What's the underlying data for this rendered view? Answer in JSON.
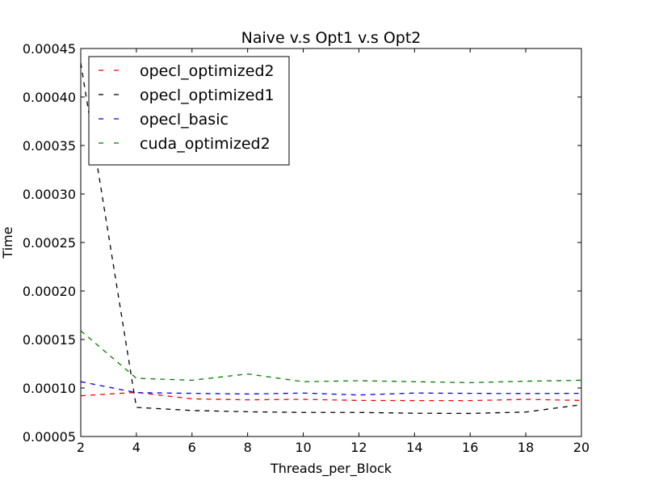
{
  "chart_data": {
    "type": "line",
    "title": "Naive v.s Opt1 v.s Opt2",
    "xlabel": "Threads_per_Block",
    "ylabel": "Time",
    "xlim": [
      2,
      20
    ],
    "ylim": [
      5e-05,
      0.00045
    ],
    "x_ticks": [
      2,
      4,
      6,
      8,
      10,
      12,
      14,
      16,
      18,
      20
    ],
    "y_ticks": [
      5e-05,
      0.0001,
      0.00015,
      0.0002,
      0.00025,
      0.0003,
      0.00035,
      0.0004,
      0.00045
    ],
    "y_tick_labels": [
      "0.00005",
      "0.00010",
      "0.00015",
      "0.00020",
      "0.00025",
      "0.00030",
      "0.00035",
      "0.00040",
      "0.00045"
    ],
    "grid": false,
    "legend_position": "upper-left",
    "x": [
      2,
      4,
      6,
      8,
      10,
      12,
      14,
      16,
      18,
      20
    ],
    "series": [
      {
        "name": "opecl_optimized2",
        "color": "#ff0000",
        "style": "dashed",
        "values": [
          9.2e-05,
          9.55e-05,
          8.88e-05,
          8.78e-05,
          8.83e-05,
          8.72e-05,
          8.7e-05,
          8.7e-05,
          8.83e-05,
          8.72e-05
        ]
      },
      {
        "name": "opecl_optimized1",
        "color": "#000000",
        "style": "dashed",
        "values": [
          0.000435,
          8e-05,
          7.68e-05,
          7.55e-05,
          7.48e-05,
          7.48e-05,
          7.4e-05,
          7.38e-05,
          7.52e-05,
          8.28e-05
        ]
      },
      {
        "name": "opecl_basic",
        "color": "#0000ff",
        "style": "dashed",
        "values": [
          0.0001065,
          9.52e-05,
          9.45e-05,
          9.38e-05,
          9.48e-05,
          9.28e-05,
          9.48e-05,
          9.45e-05,
          9.43e-05,
          9.45e-05
        ]
      },
      {
        "name": "cuda_optimized2",
        "color": "#008000",
        "style": "dashed",
        "values": [
          0.000159,
          0.00011,
          0.000108,
          0.0001145,
          0.0001065,
          0.0001075,
          0.0001065,
          0.0001055,
          0.000107,
          0.000108
        ]
      }
    ]
  }
}
